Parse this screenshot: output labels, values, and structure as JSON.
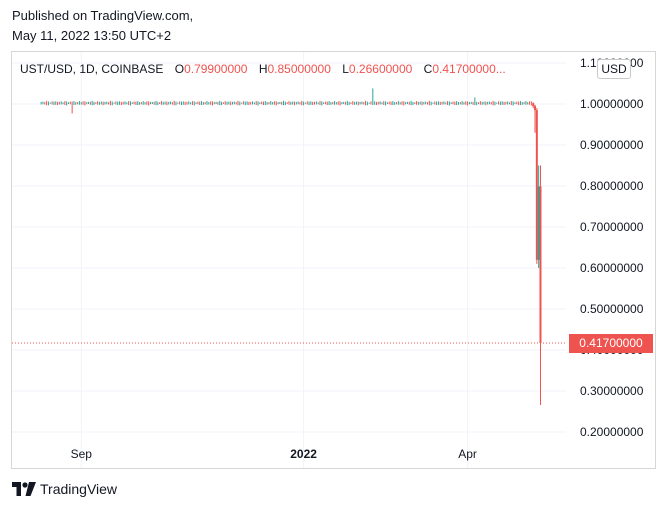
{
  "published": {
    "line1": "Published on TradingView.com,",
    "line2": "May 11, 2022 13:50 UTC+2"
  },
  "legend": {
    "symbol": "UST/USD, 1D, COINBASE",
    "o_key": "O",
    "o_val": "0.79900000",
    "h_key": "H",
    "h_val": "0.85000000",
    "l_key": "L",
    "l_val": "0.26600000",
    "c_key": "C",
    "c_val": "0.41700000..."
  },
  "currency_badge": "USD",
  "price_tag": "0.41700000",
  "brand": {
    "name": "TradingView",
    "icon": "tradingview-logo-icon"
  },
  "colors": {
    "up": "#26a69a",
    "down": "#ef5350",
    "grid": "#f0f3fa",
    "text": "#131722"
  },
  "chart_data": {
    "type": "candlestick",
    "title": "UST/USD, 1D, COINBASE",
    "ylim": [
      0.18,
      1.11
    ],
    "y_ticks": [
      "1.10000000",
      "1.00000000",
      "0.90000000",
      "0.80000000",
      "0.70000000",
      "0.60000000",
      "0.50000000",
      "0.40000000",
      "0.30000000",
      "0.20000000"
    ],
    "y_tick_values": [
      1.1,
      1.0,
      0.9,
      0.8,
      0.7,
      0.6,
      0.5,
      0.4,
      0.3,
      0.2
    ],
    "x_ticks": [
      "Sep",
      "2022",
      "Apr"
    ],
    "x_tick_dates": [
      "2021-09-01",
      "2022-01-01",
      "2022-04-01"
    ],
    "x_range": [
      "2021-07-25",
      "2022-05-25"
    ],
    "last_price": 0.417,
    "series_start": "2021-08-10",
    "flat_series_end": "2022-05-06",
    "flat_level": 1.002,
    "spikes": [
      {
        "date": "2021-08-27",
        "low": 0.977
      },
      {
        "date": "2022-02-08",
        "high": 1.038
      },
      {
        "date": "2022-04-05",
        "high": 1.016
      }
    ],
    "crash_candles": [
      {
        "date": "2022-05-07",
        "open": 1.002,
        "high": 1.004,
        "low": 0.99,
        "close": 0.995
      },
      {
        "date": "2022-05-08",
        "open": 0.995,
        "high": 0.998,
        "low": 0.93,
        "close": 0.985
      },
      {
        "date": "2022-05-09",
        "open": 0.985,
        "high": 0.99,
        "low": 0.61,
        "close": 0.62
      },
      {
        "date": "2022-05-10",
        "open": 0.62,
        "high": 0.85,
        "low": 0.6,
        "close": 0.799
      },
      {
        "date": "2022-05-11",
        "open": 0.799,
        "high": 0.85,
        "low": 0.266,
        "close": 0.417
      }
    ]
  }
}
